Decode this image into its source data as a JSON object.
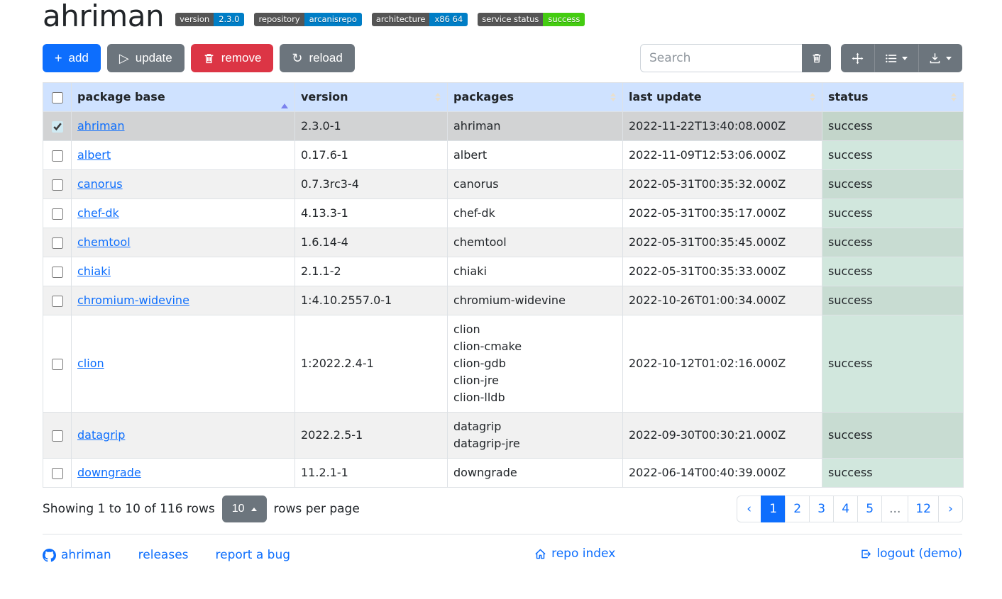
{
  "header": {
    "title": "ahriman",
    "badges": [
      {
        "label": "version",
        "value": "2.3.0",
        "value_color": "#007ec6"
      },
      {
        "label": "repository",
        "value": "arcanisrepo",
        "value_color": "#007ec6"
      },
      {
        "label": "architecture",
        "value": "x86 64",
        "value_color": "#007ec6"
      },
      {
        "label": "service status",
        "value": "success",
        "value_color": "#44cc11"
      }
    ]
  },
  "toolbar": {
    "add_label": "add",
    "update_label": "update",
    "remove_label": "remove",
    "reload_label": "reload",
    "search_placeholder": "Search"
  },
  "table": {
    "columns": [
      "package base",
      "version",
      "packages",
      "last update",
      "status"
    ],
    "rows": [
      {
        "base": "ahriman",
        "version": "2.3.0-1",
        "packages": [
          "ahriman"
        ],
        "last_update": "2022-11-22T13:40:08.000Z",
        "status": "success",
        "selected": true
      },
      {
        "base": "albert",
        "version": "0.17.6-1",
        "packages": [
          "albert"
        ],
        "last_update": "2022-11-09T12:53:06.000Z",
        "status": "success"
      },
      {
        "base": "canorus",
        "version": "0.7.3rc3-4",
        "packages": [
          "canorus"
        ],
        "last_update": "2022-05-31T00:35:32.000Z",
        "status": "success"
      },
      {
        "base": "chef-dk",
        "version": "4.13.3-1",
        "packages": [
          "chef-dk"
        ],
        "last_update": "2022-05-31T00:35:17.000Z",
        "status": "success"
      },
      {
        "base": "chemtool",
        "version": "1.6.14-4",
        "packages": [
          "chemtool"
        ],
        "last_update": "2022-05-31T00:35:45.000Z",
        "status": "success"
      },
      {
        "base": "chiaki",
        "version": "2.1.1-2",
        "packages": [
          "chiaki"
        ],
        "last_update": "2022-05-31T00:35:33.000Z",
        "status": "success"
      },
      {
        "base": "chromium-widevine",
        "version": "1:4.10.2557.0-1",
        "packages": [
          "chromium-widevine"
        ],
        "last_update": "2022-10-26T01:00:34.000Z",
        "status": "success"
      },
      {
        "base": "clion",
        "version": "1:2022.2.4-1",
        "packages": [
          "clion",
          "clion-cmake",
          "clion-gdb",
          "clion-jre",
          "clion-lldb"
        ],
        "last_update": "2022-10-12T01:02:16.000Z",
        "status": "success"
      },
      {
        "base": "datagrip",
        "version": "2022.2.5-1",
        "packages": [
          "datagrip",
          "datagrip-jre"
        ],
        "last_update": "2022-09-30T00:30:21.000Z",
        "status": "success"
      },
      {
        "base": "downgrade",
        "version": "11.2.1-1",
        "packages": [
          "downgrade"
        ],
        "last_update": "2022-06-14T00:40:39.000Z",
        "status": "success"
      }
    ]
  },
  "pagination": {
    "summary": "Showing 1 to 10 of 116 rows",
    "page_size": "10",
    "page_size_suffix": "rows per page",
    "prev": "‹",
    "next": "›",
    "pages": [
      "1",
      "2",
      "3",
      "4",
      "5",
      "...",
      "12"
    ],
    "active_page": "1"
  },
  "footer": {
    "github_link": "ahriman",
    "releases_link": "releases",
    "report_bug_link": "report a bug",
    "repo_index_link": "repo index",
    "logout_link": "logout (demo)"
  },
  "colors": {
    "accent": "#0d6efd",
    "secondary": "#6c757d",
    "danger": "#dc3545",
    "badge_label_bg": "#555555",
    "badge_blue": "#007ec6",
    "badge_green": "#44cc11",
    "table_header_bg": "#cfe2ff",
    "status_success_bg": "#d1e7dd",
    "selected_row_bg": "#d2d3d4"
  }
}
